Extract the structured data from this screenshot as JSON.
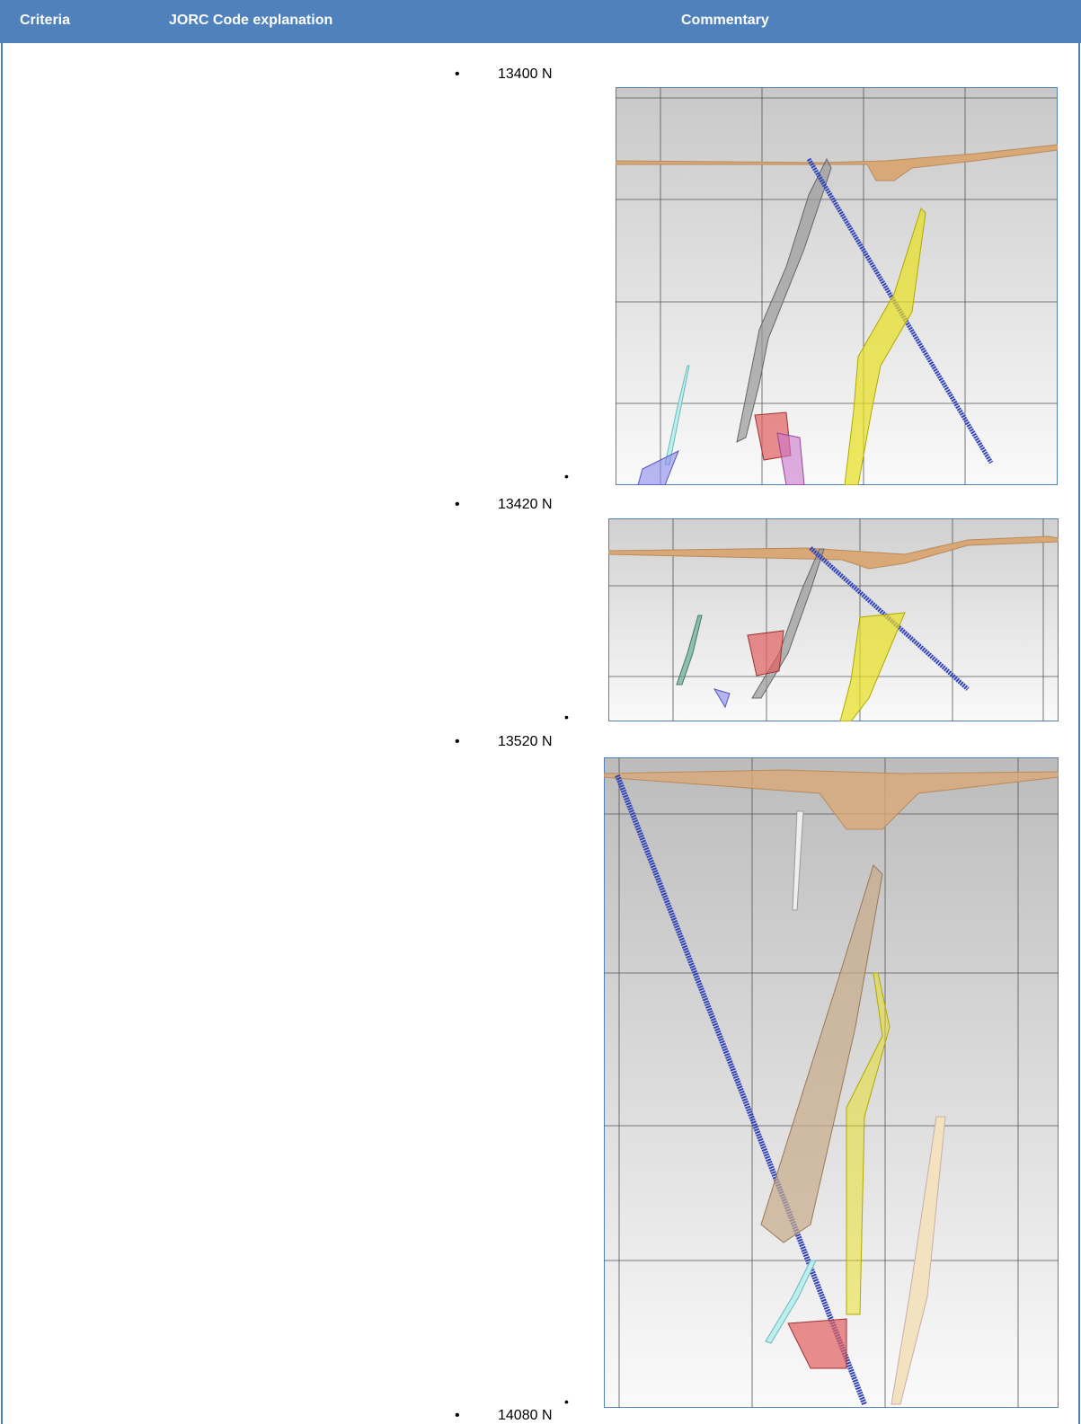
{
  "header": {
    "columns": [
      "Criteria",
      "JORC Code explanation",
      "Commentary"
    ]
  },
  "commentary": {
    "sections": [
      "13400 N",
      "13420 N",
      "13520 N",
      "14080 N"
    ]
  }
}
